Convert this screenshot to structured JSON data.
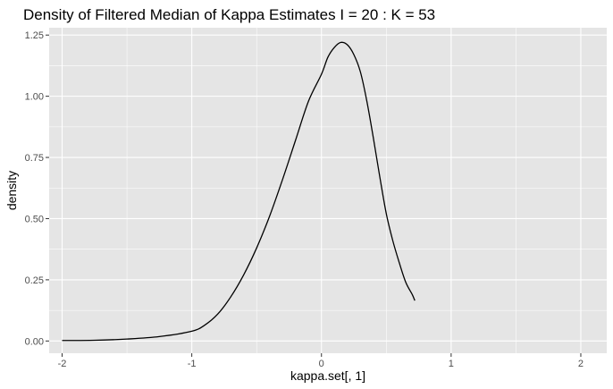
{
  "chart_data": {
    "type": "line",
    "title": "Density of Filtered Median of Kappa Estimates I = 20 : K = 53",
    "xlabel": "kappa.set[, 1]",
    "ylabel": "density",
    "xlim": [
      -2.1,
      2.2
    ],
    "ylim": [
      -0.05,
      1.28
    ],
    "x_ticks": [
      -2,
      -1,
      0,
      1,
      2
    ],
    "x_tick_labels": [
      "-2",
      "-1",
      "0",
      "1",
      "2"
    ],
    "y_ticks": [
      0,
      0.25,
      0.5,
      0.75,
      1.0,
      1.25
    ],
    "y_tick_labels": [
      "0.00",
      "0.25",
      "0.50",
      "0.75",
      "1.00",
      "1.25"
    ],
    "grid": true,
    "legend": "none",
    "colors": {
      "panel_background": "#e5e5e5",
      "grid_major": "#ffffff",
      "line": "#000000"
    },
    "series": [
      {
        "x": [
          -2.0,
          -1.75,
          -1.5,
          -1.25,
          -1.0,
          -0.9,
          -0.8,
          -0.7,
          -0.6,
          -0.5,
          -0.4,
          -0.3,
          -0.2,
          -0.1,
          0.0,
          0.05,
          0.1,
          0.15,
          0.2,
          0.25,
          0.3,
          0.35,
          0.4,
          0.45,
          0.5,
          0.55,
          0.6,
          0.65,
          0.7,
          0.72
        ],
        "values": [
          0.002,
          0.003,
          0.008,
          0.018,
          0.04,
          0.065,
          0.11,
          0.18,
          0.27,
          0.38,
          0.51,
          0.66,
          0.82,
          0.98,
          1.09,
          1.16,
          1.2,
          1.22,
          1.21,
          1.17,
          1.1,
          0.98,
          0.83,
          0.67,
          0.52,
          0.41,
          0.32,
          0.24,
          0.19,
          0.165
        ]
      }
    ]
  }
}
